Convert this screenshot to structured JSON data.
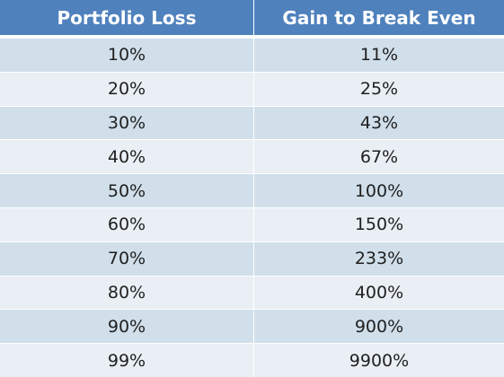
{
  "table": {
    "headers": [
      "Portfolio Loss",
      "Gain to Break Even"
    ],
    "rows": [
      [
        "10%",
        "11%"
      ],
      [
        "20%",
        "25%"
      ],
      [
        "30%",
        "43%"
      ],
      [
        "40%",
        "67%"
      ],
      [
        "50%",
        "100%"
      ],
      [
        "60%",
        "150%"
      ],
      [
        "70%",
        "233%"
      ],
      [
        "80%",
        "400%"
      ],
      [
        "90%",
        "900%"
      ],
      [
        "99%",
        "9900%"
      ]
    ]
  },
  "colors": {
    "header_bg": "#4f81bd",
    "header_text": "#ffffff",
    "row_odd_bg": "#d0dfea",
    "row_even_bg": "#e9eff5",
    "cell_text": "#202020"
  }
}
